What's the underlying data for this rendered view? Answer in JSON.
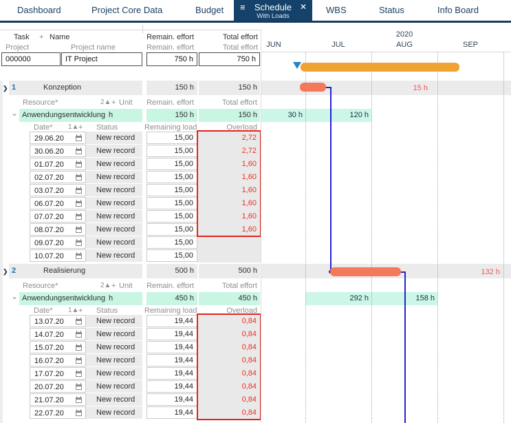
{
  "nav": {
    "tabs": [
      {
        "label": "Dashboard"
      },
      {
        "label": "Project Core Data"
      },
      {
        "label": "Budget"
      },
      {
        "label": "Schedule",
        "sublabel": "With Loads",
        "active": true,
        "hamburger_icon": "≡",
        "close_icon": "✕"
      },
      {
        "label": "WBS"
      },
      {
        "label": "Status"
      },
      {
        "label": "Info Board"
      }
    ]
  },
  "table": {
    "header": {
      "task": "Task",
      "plus": "+",
      "name": "Name",
      "remain": "Remain. effort",
      "total": "Total effort"
    },
    "subheader": {
      "project": "Project",
      "project_name": "Project name",
      "remain": "Remain. effort",
      "total": "Total effort"
    },
    "project_row": {
      "id": "000000",
      "name": "IT Project",
      "remain": "750 h",
      "total": "750 h"
    }
  },
  "sections": [
    {
      "number": "1",
      "name": "Konzeption",
      "remain": "150 h",
      "total": "150 h",
      "expand_icon": "❯",
      "resource_header": {
        "label": "Resource*",
        "sort": "2▲",
        "plus": "+",
        "unit": "Unit",
        "remain": "Remain. effort",
        "total": "Total effort"
      },
      "resource": {
        "collapse_icon": "⌄",
        "name": "Anwendungsentwicklung",
        "unit": "h",
        "remain": "150 h",
        "total": "150 h"
      },
      "date_header": {
        "label": "Date*",
        "sort": "1▲",
        "plus": "+",
        "status": "Status",
        "remaining": "Remaining load",
        "overload": "Overload"
      },
      "date_rows": [
        {
          "date": "29.06.20",
          "status": "New record",
          "remaining": "15,00",
          "overload": "2,72"
        },
        {
          "date": "30.06.20",
          "status": "New record",
          "remaining": "15,00",
          "overload": "2,72"
        },
        {
          "date": "01.07.20",
          "status": "New record",
          "remaining": "15,00",
          "overload": "1,60"
        },
        {
          "date": "02.07.20",
          "status": "New record",
          "remaining": "15,00",
          "overload": "1,60"
        },
        {
          "date": "03.07.20",
          "status": "New record",
          "remaining": "15,00",
          "overload": "1,60"
        },
        {
          "date": "06.07.20",
          "status": "New record",
          "remaining": "15,00",
          "overload": "1,60"
        },
        {
          "date": "07.07.20",
          "status": "New record",
          "remaining": "15,00",
          "overload": "1,60"
        },
        {
          "date": "08.07.20",
          "status": "New record",
          "remaining": "15,00",
          "overload": "1,60"
        },
        {
          "date": "09.07.20",
          "status": "New record",
          "remaining": "15,00",
          "overload": ""
        },
        {
          "date": "10.07.20",
          "status": "New record",
          "remaining": "15,00",
          "overload": ""
        }
      ]
    },
    {
      "number": "2",
      "name": "Realisierung",
      "remain": "500 h",
      "total": "500 h",
      "expand_icon": "❯",
      "resource_header": {
        "label": "Resource*",
        "sort": "2▲",
        "plus": "+",
        "unit": "Unit",
        "remain": "Remain. effort",
        "total": "Total effort"
      },
      "resource": {
        "collapse_icon": "⌄",
        "name": "Anwendungsentwicklung",
        "unit": "h",
        "remain": "450 h",
        "total": "450 h"
      },
      "date_header": {
        "label": "Date*",
        "sort": "1▲",
        "plus": "+",
        "status": "Status",
        "remaining": "Remaining load",
        "overload": "Overload"
      },
      "date_rows": [
        {
          "date": "13.07.20",
          "status": "New record",
          "remaining": "19,44",
          "overload": "0,84"
        },
        {
          "date": "14.07.20",
          "status": "New record",
          "remaining": "19,44",
          "overload": "0,84"
        },
        {
          "date": "15.07.20",
          "status": "New record",
          "remaining": "19,44",
          "overload": "0,84"
        },
        {
          "date": "16.07.20",
          "status": "New record",
          "remaining": "19,44",
          "overload": "0,84"
        },
        {
          "date": "17.07.20",
          "status": "New record",
          "remaining": "19,44",
          "overload": "0,84"
        },
        {
          "date": "20.07.20",
          "status": "New record",
          "remaining": "19,44",
          "overload": "0,84"
        },
        {
          "date": "21.07.20",
          "status": "New record",
          "remaining": "19,44",
          "overload": "0,84"
        },
        {
          "date": "22.07.20",
          "status": "New record",
          "remaining": "19,44",
          "overload": "0,84"
        }
      ]
    }
  ],
  "gantt": {
    "year": "2020",
    "months": [
      "JUN",
      "JUL",
      "AUG",
      "SEP"
    ],
    "load_labels": {
      "konzeption": [
        "30 h",
        "120 h"
      ],
      "realisierung": [
        "292 h",
        "158 h"
      ]
    },
    "overload_labels": {
      "konzeption": "15 h",
      "realisierung": "132 h"
    }
  },
  "colors": {
    "accent_navy": "#14426a",
    "bar_orange": "#f0a232",
    "bar_salmon": "#f4795b",
    "mint": "#c9f5e3",
    "overload_red": "#ee2e24",
    "link_blue": "#2222cc",
    "marker_blue": "#1e86c0"
  }
}
